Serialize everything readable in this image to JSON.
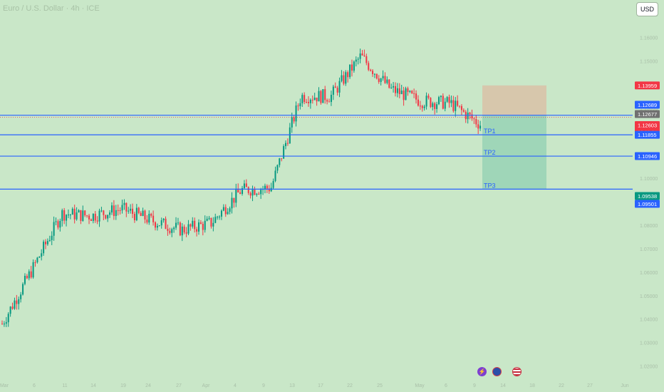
{
  "header": {
    "title": "Euro / U.S. Dollar · 4h · ICE",
    "currency_button": "USD"
  },
  "price_axis": {
    "ticks": [
      "1.17000",
      "1.16000",
      "1.15000",
      "1.14000",
      "1.13000",
      "1.12000",
      "1.11000",
      "1.10000",
      "1.09000",
      "1.08000",
      "1.07000",
      "1.06000",
      "1.05000",
      "1.04000",
      "1.03000",
      "1.02000"
    ]
  },
  "price_labels": [
    {
      "value": "1.13959",
      "color": "#f23645"
    },
    {
      "value": "1.12689",
      "color": "#2962ff"
    },
    {
      "value": "1.12677",
      "color": "#707070"
    },
    {
      "value": "1.12603",
      "sub": "03:39:24",
      "color": "#f23645"
    },
    {
      "value": "1.11855",
      "color": "#2962ff"
    },
    {
      "value": "1.10946",
      "color": "#2962ff"
    },
    {
      "value": "1.09538",
      "color": "#089981"
    },
    {
      "value": "1.09501",
      "color": "#2962ff"
    }
  ],
  "levels": [
    {
      "price": 1.12689,
      "label": ""
    },
    {
      "price": 1.11855,
      "label": "TP1"
    },
    {
      "price": 1.10946,
      "label": "TP2"
    },
    {
      "price": 1.09538,
      "label": "TP3"
    }
  ],
  "current_price": 1.12603,
  "position_box": {
    "stop": 1.13959,
    "entry": 1.12677,
    "target": 1.09538
  },
  "time_axis": {
    "ticks": [
      "Mar",
      "6",
      "11",
      "14",
      "19",
      "24",
      "27",
      "Apr",
      "4",
      "9",
      "13",
      "17",
      "22",
      "25",
      "May",
      "6",
      "9",
      "14",
      "18",
      "22",
      "27",
      "Jun"
    ]
  },
  "colors": {
    "background": "#c9e7c8",
    "up_candle": "#089981",
    "down_candle": "#f23645",
    "level_line": "#2962ff",
    "stop_zone": "rgba(242,140,120,0.35)",
    "target_zone": "rgba(8,153,129,0.22)"
  },
  "chart_data": {
    "type": "line",
    "title": "Euro / U.S. Dollar · 4h · ICE",
    "xlabel": "",
    "ylabel": "",
    "ylim": [
      1.015,
      1.176
    ],
    "x": [
      "Mar",
      "6",
      "11",
      "14",
      "19",
      "24",
      "27",
      "Apr",
      "4",
      "9",
      "13",
      "17",
      "22",
      "25",
      "May",
      "6",
      "9"
    ],
    "series": [
      {
        "values": [
          1.038,
          1.061,
          1.085,
          1.084,
          1.087,
          1.082,
          1.078,
          1.081,
          1.095,
          1.096,
          1.135,
          1.135,
          1.152,
          1.138,
          1.133,
          1.132,
          1.123
        ]
      }
    ]
  },
  "overlay_icons": [
    "flash-icon",
    "globe-icon",
    "us-flag-icon"
  ]
}
